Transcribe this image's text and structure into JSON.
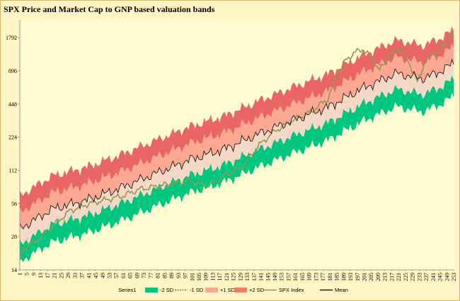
{
  "chart_data": {
    "type": "area",
    "title": "SPX Price  and   Market Cap  to GNP based valuation  bands",
    "xlabel": "",
    "ylabel": "",
    "y_scale": "log2",
    "ylim": [
      14,
      2600
    ],
    "y_ticks": [
      14,
      28,
      56,
      112,
      224,
      448,
      896,
      1792
    ],
    "x_range": [
      1,
      253
    ],
    "x_tick_start": 1,
    "x_tick_step": 4,
    "grid": false,
    "legend_position": "bottom",
    "legend": [
      "Series1",
      "-2 SD",
      "-1 SD",
      "+1 SD",
      "+2 SD",
      "SPX Index",
      "Mean"
    ],
    "colors": {
      "plot_bg": "#fffbd0",
      "minus2": "#00c67f",
      "minus1": "#f6d8c6",
      "plus1": "#fca893",
      "plus2": "#e96566",
      "spx": "#8c9b57",
      "mean": "#1c1c1c"
    },
    "mean_anchors": [
      [
        1,
        33
      ],
      [
        20,
        50
      ],
      [
        40,
        60
      ],
      [
        60,
        78
      ],
      [
        80,
        105
      ],
      [
        100,
        140
      ],
      [
        120,
        175
      ],
      [
        140,
        240
      ],
      [
        160,
        320
      ],
      [
        180,
        420
      ],
      [
        200,
        620
      ],
      [
        220,
        850
      ],
      [
        235,
        760
      ],
      [
        245,
        880
      ],
      [
        253,
        1050
      ]
    ],
    "spx_anchors": [
      [
        1,
        16
      ],
      [
        3,
        22
      ],
      [
        10,
        25
      ],
      [
        20,
        35
      ],
      [
        30,
        48
      ],
      [
        40,
        55
      ],
      [
        50,
        60
      ],
      [
        60,
        65
      ],
      [
        70,
        75
      ],
      [
        80,
        80
      ],
      [
        90,
        85
      ],
      [
        100,
        90
      ],
      [
        110,
        80
      ],
      [
        120,
        100
      ],
      [
        130,
        120
      ],
      [
        140,
        190
      ],
      [
        150,
        260
      ],
      [
        160,
        320
      ],
      [
        170,
        380
      ],
      [
        180,
        500
      ],
      [
        185,
        800
      ],
      [
        190,
        1100
      ],
      [
        195,
        1300
      ],
      [
        200,
        1400
      ],
      [
        205,
        1200
      ],
      [
        210,
        900
      ],
      [
        215,
        1200
      ],
      [
        222,
        1450
      ],
      [
        228,
        1000
      ],
      [
        232,
        700
      ],
      [
        236,
        1050
      ],
      [
        240,
        1250
      ],
      [
        245,
        1400
      ],
      [
        253,
        2000
      ]
    ],
    "band_factors": {
      "minus2": 0.5,
      "minus1": 0.72,
      "plus1": 1.4,
      "plus2": 2.0
    }
  }
}
